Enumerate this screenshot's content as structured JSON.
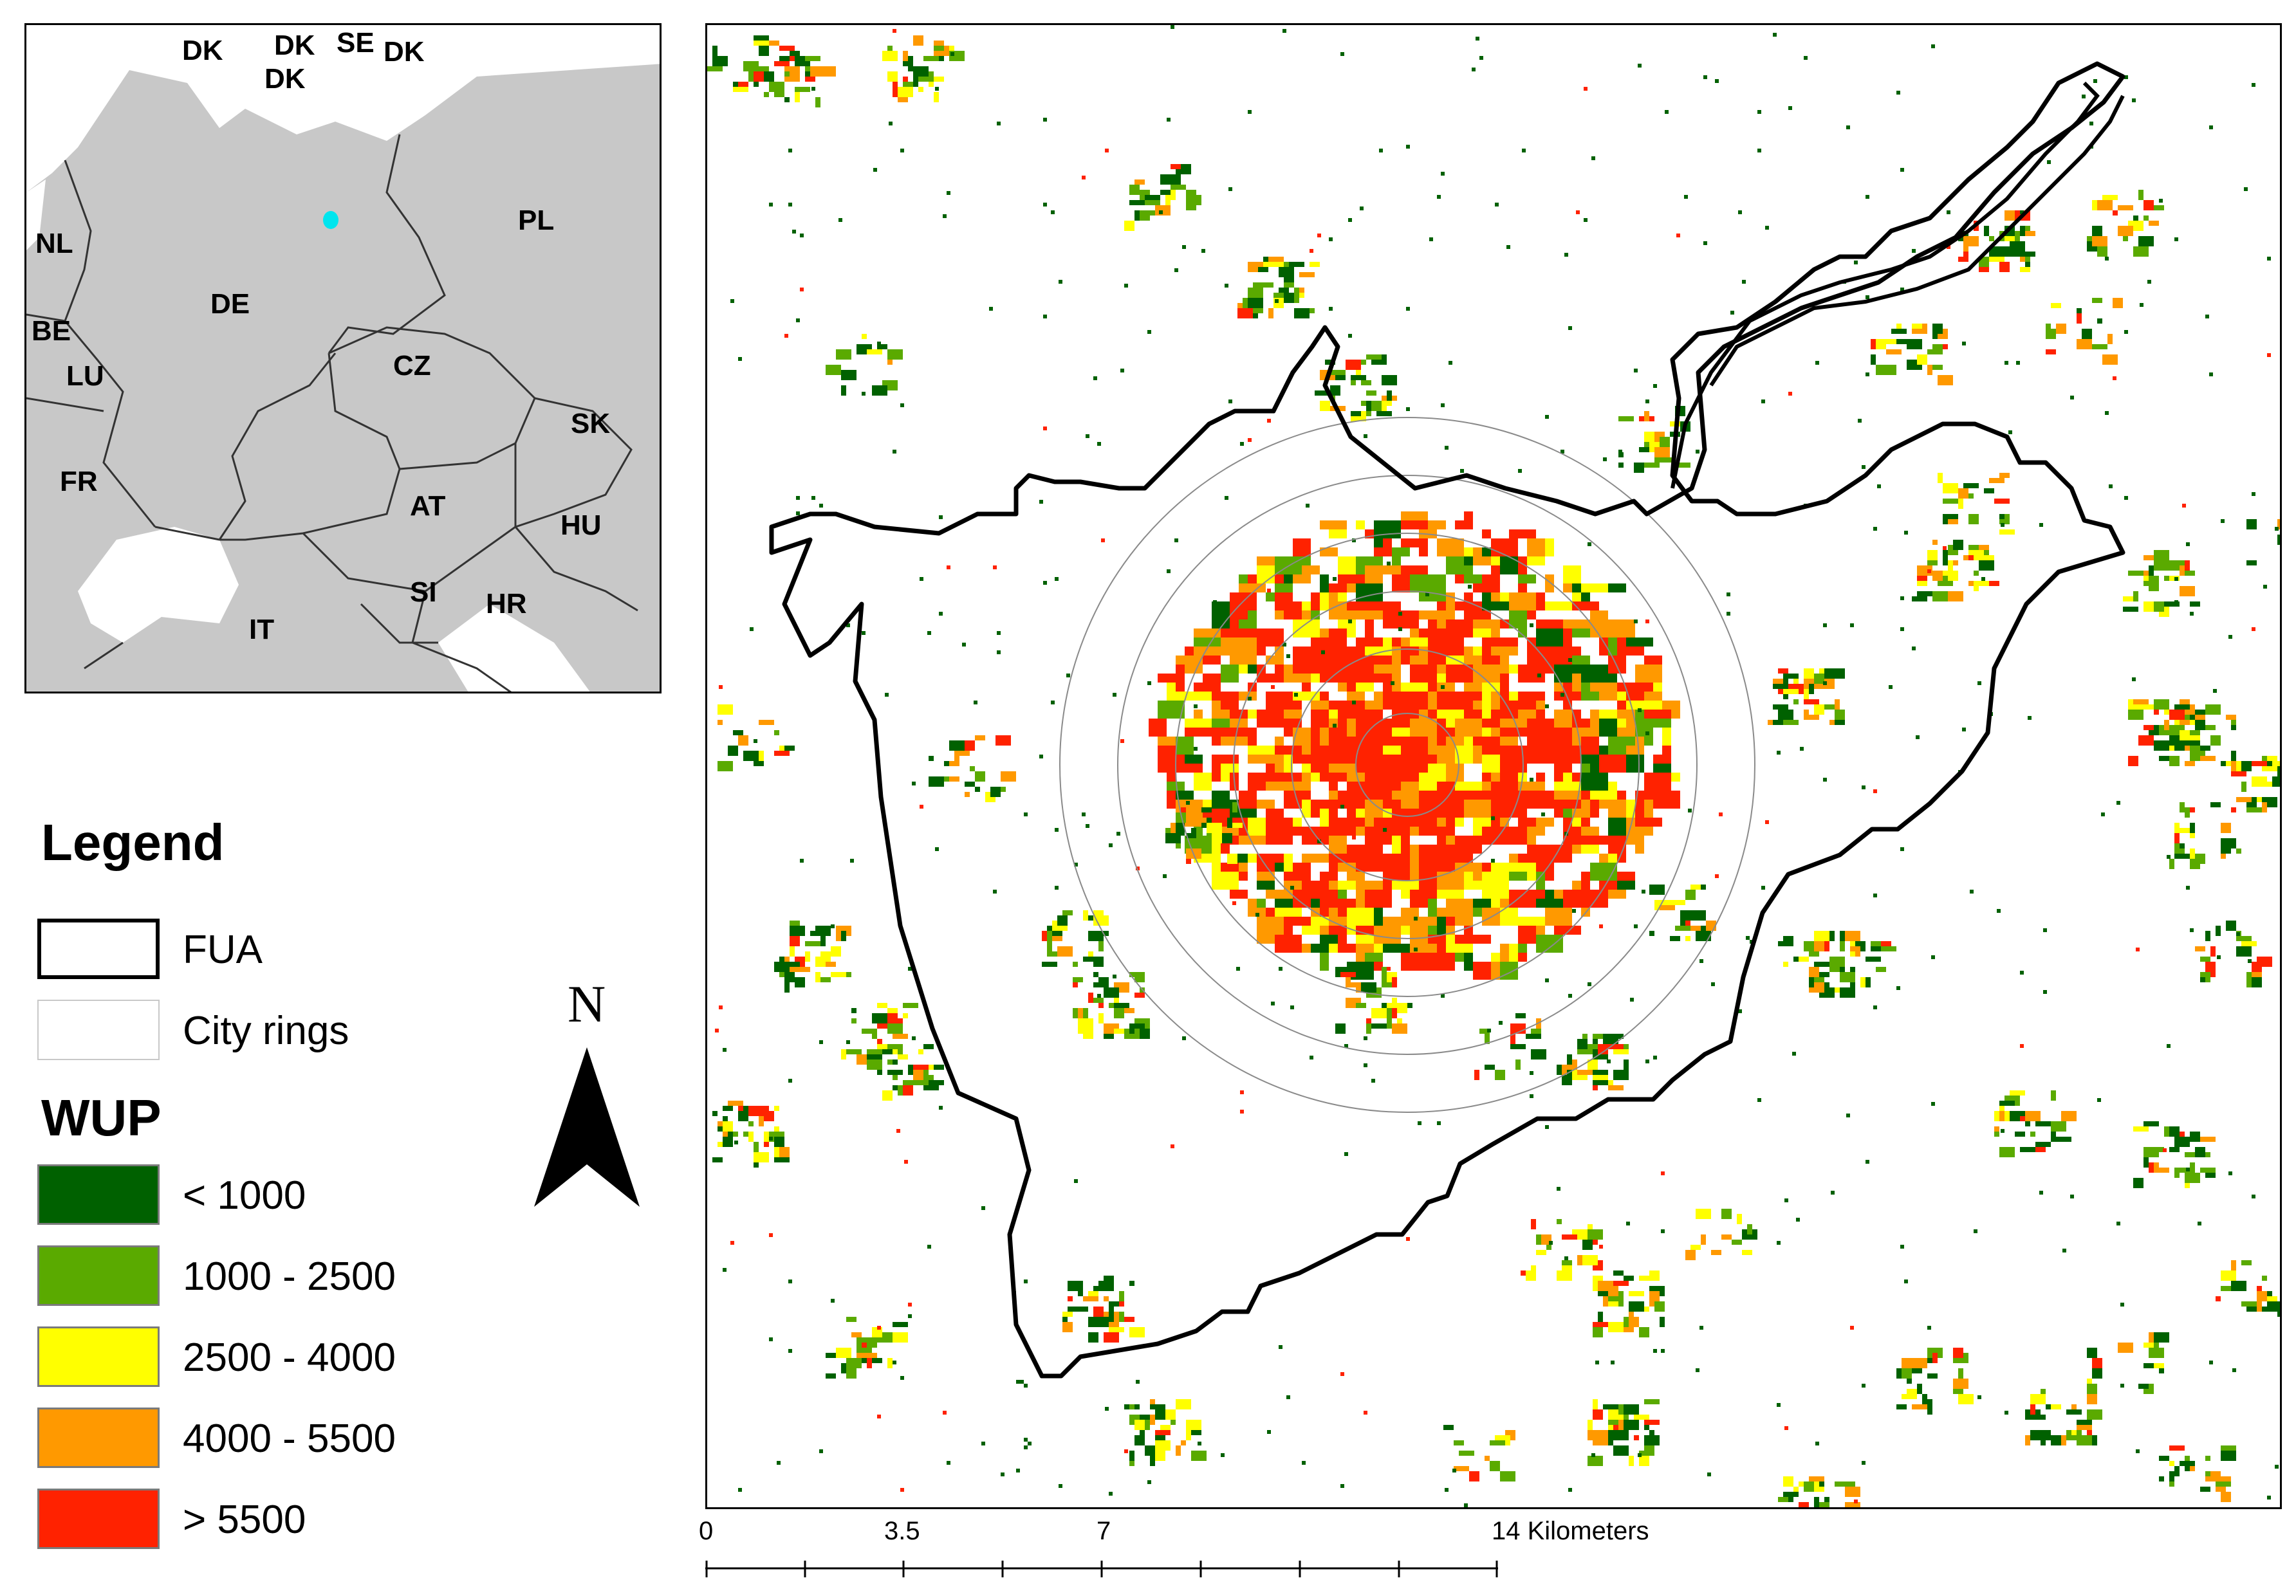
{
  "inset": {
    "countries": [
      {
        "code": "DK",
        "id": "dk1"
      },
      {
        "code": "DK",
        "id": "dk2"
      },
      {
        "code": "DK",
        "id": "dk3"
      },
      {
        "code": "SE",
        "id": "se"
      },
      {
        "code": "DK",
        "id": "dk4"
      },
      {
        "code": "PL",
        "id": "pl"
      },
      {
        "code": "NL",
        "id": "nl"
      },
      {
        "code": "DE",
        "id": "de"
      },
      {
        "code": "BE",
        "id": "be"
      },
      {
        "code": "LU",
        "id": "lu"
      },
      {
        "code": "CZ",
        "id": "cz"
      },
      {
        "code": "SK",
        "id": "sk"
      },
      {
        "code": "FR",
        "id": "fr"
      },
      {
        "code": "AT",
        "id": "at"
      },
      {
        "code": "HU",
        "id": "hu"
      },
      {
        "code": "SI",
        "id": "si"
      },
      {
        "code": "HR",
        "id": "hr"
      },
      {
        "code": "IT",
        "id": "it"
      }
    ],
    "land_color": "#c8c8c8",
    "highlight_color": "#00e5ee"
  },
  "legend": {
    "title": "Legend",
    "fua_label": "FUA",
    "rings_label": "City rings",
    "wup_title": "WUP",
    "classes": [
      {
        "label": "< 1000",
        "color": "#006100"
      },
      {
        "label": "1000 - 2500",
        "color": "#5aaa00"
      },
      {
        "label": "2500 - 4000",
        "color": "#ffff00"
      },
      {
        "label": "4000 - 5500",
        "color": "#ff9900"
      },
      {
        "label": "> 5500",
        "color": "#ff2200"
      }
    ]
  },
  "north_arrow": {
    "label": "N"
  },
  "scale_bar": {
    "ticks": [
      "0",
      "3.5",
      "7",
      "14 Kilometers"
    ],
    "unit": "Kilometers"
  }
}
